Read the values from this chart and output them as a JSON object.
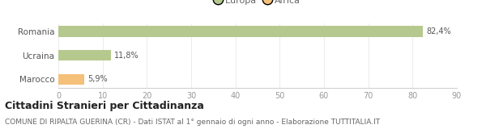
{
  "categories": [
    "Romania",
    "Ucraina",
    "Marocco"
  ],
  "values": [
    82.4,
    11.8,
    5.9
  ],
  "labels": [
    "82,4%",
    "11,8%",
    "5,9%"
  ],
  "bar_colors": [
    "#b5c98e",
    "#b5c98e",
    "#f5c07a"
  ],
  "legend_labels": [
    "Europa",
    "Africa"
  ],
  "legend_colors": [
    "#b5c98e",
    "#f5c07a"
  ],
  "xlim": [
    0,
    90
  ],
  "xticks": [
    0,
    10,
    20,
    30,
    40,
    50,
    60,
    70,
    80,
    90
  ],
  "title": "Cittadini Stranieri per Cittadinanza",
  "subtitle": "COMUNE DI RIPALTA GUERINA (CR) - Dati ISTAT al 1° gennaio di ogni anno - Elaborazione TUTTITALIA.IT",
  "title_fontsize": 9,
  "subtitle_fontsize": 6.5,
  "background_color": "#ffffff",
  "bar_height": 0.45
}
